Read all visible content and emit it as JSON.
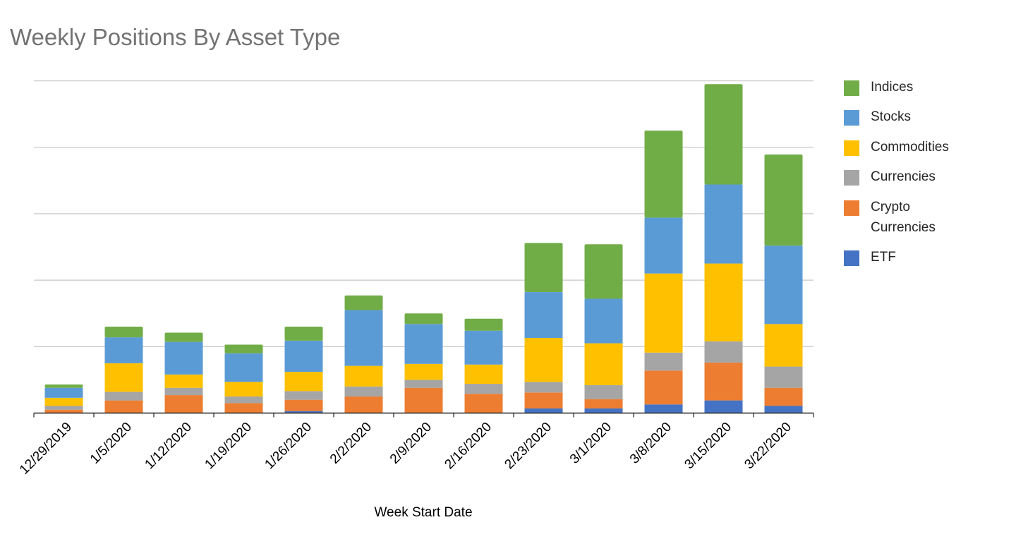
{
  "chart_data": {
    "type": "bar",
    "stacked": true,
    "title": "Weekly Positions By Asset Type",
    "xlabel": "Week Start Date",
    "ylabel": "",
    "ylim": [
      0,
      5
    ],
    "yticks": [
      0,
      1,
      2,
      3,
      4,
      5
    ],
    "ytick_labels_visible": false,
    "grid": true,
    "legend_position": "right",
    "categories": [
      "12/29/2019",
      "1/5/2020",
      "1/12/2020",
      "1/19/2020",
      "1/26/2020",
      "2/2/2020",
      "2/9/2020",
      "2/16/2020",
      "2/23/2020",
      "3/1/2020",
      "3/8/2020",
      "3/15/2020",
      "3/22/2020"
    ],
    "series": [
      {
        "name": "ETF",
        "color": "#4472C4",
        "values": [
          0.0,
          0.0,
          0.0,
          0.0,
          0.03,
          0.0,
          0.0,
          0.0,
          0.07,
          0.07,
          0.13,
          0.19,
          0.11
        ]
      },
      {
        "name": "Crypto Currencies",
        "color": "#ED7D31",
        "values": [
          0.05,
          0.19,
          0.27,
          0.15,
          0.17,
          0.25,
          0.38,
          0.29,
          0.24,
          0.14,
          0.51,
          0.57,
          0.27
        ]
      },
      {
        "name": "Currencies",
        "color": "#A5A5A5",
        "values": [
          0.06,
          0.13,
          0.11,
          0.1,
          0.13,
          0.15,
          0.12,
          0.15,
          0.16,
          0.21,
          0.27,
          0.32,
          0.32
        ]
      },
      {
        "name": "Commodities",
        "color": "#FFC000",
        "values": [
          0.12,
          0.43,
          0.2,
          0.22,
          0.29,
          0.31,
          0.24,
          0.29,
          0.66,
          0.63,
          1.19,
          1.17,
          0.64
        ]
      },
      {
        "name": "Stocks",
        "color": "#5B9BD5",
        "values": [
          0.15,
          0.39,
          0.49,
          0.43,
          0.47,
          0.84,
          0.6,
          0.51,
          0.69,
          0.67,
          0.84,
          1.19,
          1.18
        ]
      },
      {
        "name": "Indices",
        "color": "#70AD47",
        "values": [
          0.05,
          0.16,
          0.14,
          0.13,
          0.21,
          0.22,
          0.16,
          0.18,
          0.74,
          0.82,
          1.31,
          1.51,
          1.37
        ]
      }
    ]
  },
  "legend": {
    "items": [
      {
        "label": "Indices",
        "color": "#70AD47"
      },
      {
        "label": "Stocks",
        "color": "#5B9BD5"
      },
      {
        "label": "Commodities",
        "color": "#FFC000"
      },
      {
        "label": "Currencies",
        "color": "#A5A5A5"
      },
      {
        "label": "Crypto\nCurrencies",
        "color": "#ED7D31"
      },
      {
        "label": "ETF",
        "color": "#4472C4"
      }
    ]
  }
}
